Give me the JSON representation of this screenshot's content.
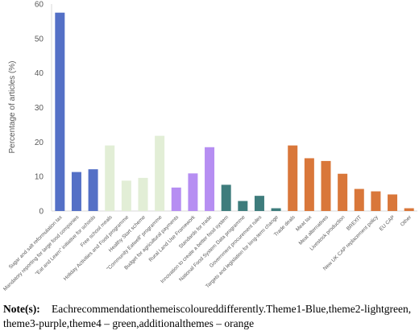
{
  "chart_data": {
    "type": "bar",
    "y_label": "Percentage  of  articles (%)",
    "categories": [
      "Sugar and salt reformulation tax",
      "Mandatory reporting for large food companies",
      "\"Eat and Learn\" initiative for schools",
      "Free school meals",
      "Holiday Activities and Food programme",
      "Healthy Start scheme",
      "\"Community Eatwell\" programme",
      "Budget for agricultural payments",
      "Rural Land Use Framework",
      "Standards for trade",
      "Innovation to create a better food system",
      "National Food System Data programme",
      "Government procurement rules",
      "Targets and legislation for long-term change",
      "Trade deals",
      "Meat tax",
      "Meat alternatives",
      "Livestock production",
      "BREXIT",
      "New UK CAP replacement policy",
      "EU CAP",
      "Other"
    ],
    "values": [
      57.5,
      11.3,
      12.1,
      19,
      8.8,
      9.6,
      21.8,
      6.8,
      10.9,
      18.5,
      7.6,
      2.9,
      4.4,
      0.8,
      19,
      15.3,
      14.5,
      10.8,
      6.4,
      5.7,
      4.8,
      0.8
    ],
    "colors": [
      "#5470c6",
      "#5470c6",
      "#5470c6",
      "#e2eed6",
      "#e2eed6",
      "#e2eed6",
      "#e2eed6",
      "#b68ef2",
      "#b68ef2",
      "#b68ef2",
      "#3e7c7c",
      "#3e7c7c",
      "#3e7c7c",
      "#3e7c7c",
      "#d9773a",
      "#d9773a",
      "#d9773a",
      "#d9773a",
      "#d9773a",
      "#d9773a",
      "#d9773a",
      "#d9773a"
    ],
    "ylim": [
      0,
      60
    ],
    "yticks": [
      0,
      10,
      20,
      30,
      40,
      50,
      60
    ],
    "grid": false,
    "note": {
      "label": "Note(s):",
      "lines": [
        "Eachrecommendationthemeiscoloureddifferently.Theme1-Blue,theme2-lightgreen,",
        "theme3-purple,theme4 – green,additionalthemes – orange"
      ]
    }
  }
}
